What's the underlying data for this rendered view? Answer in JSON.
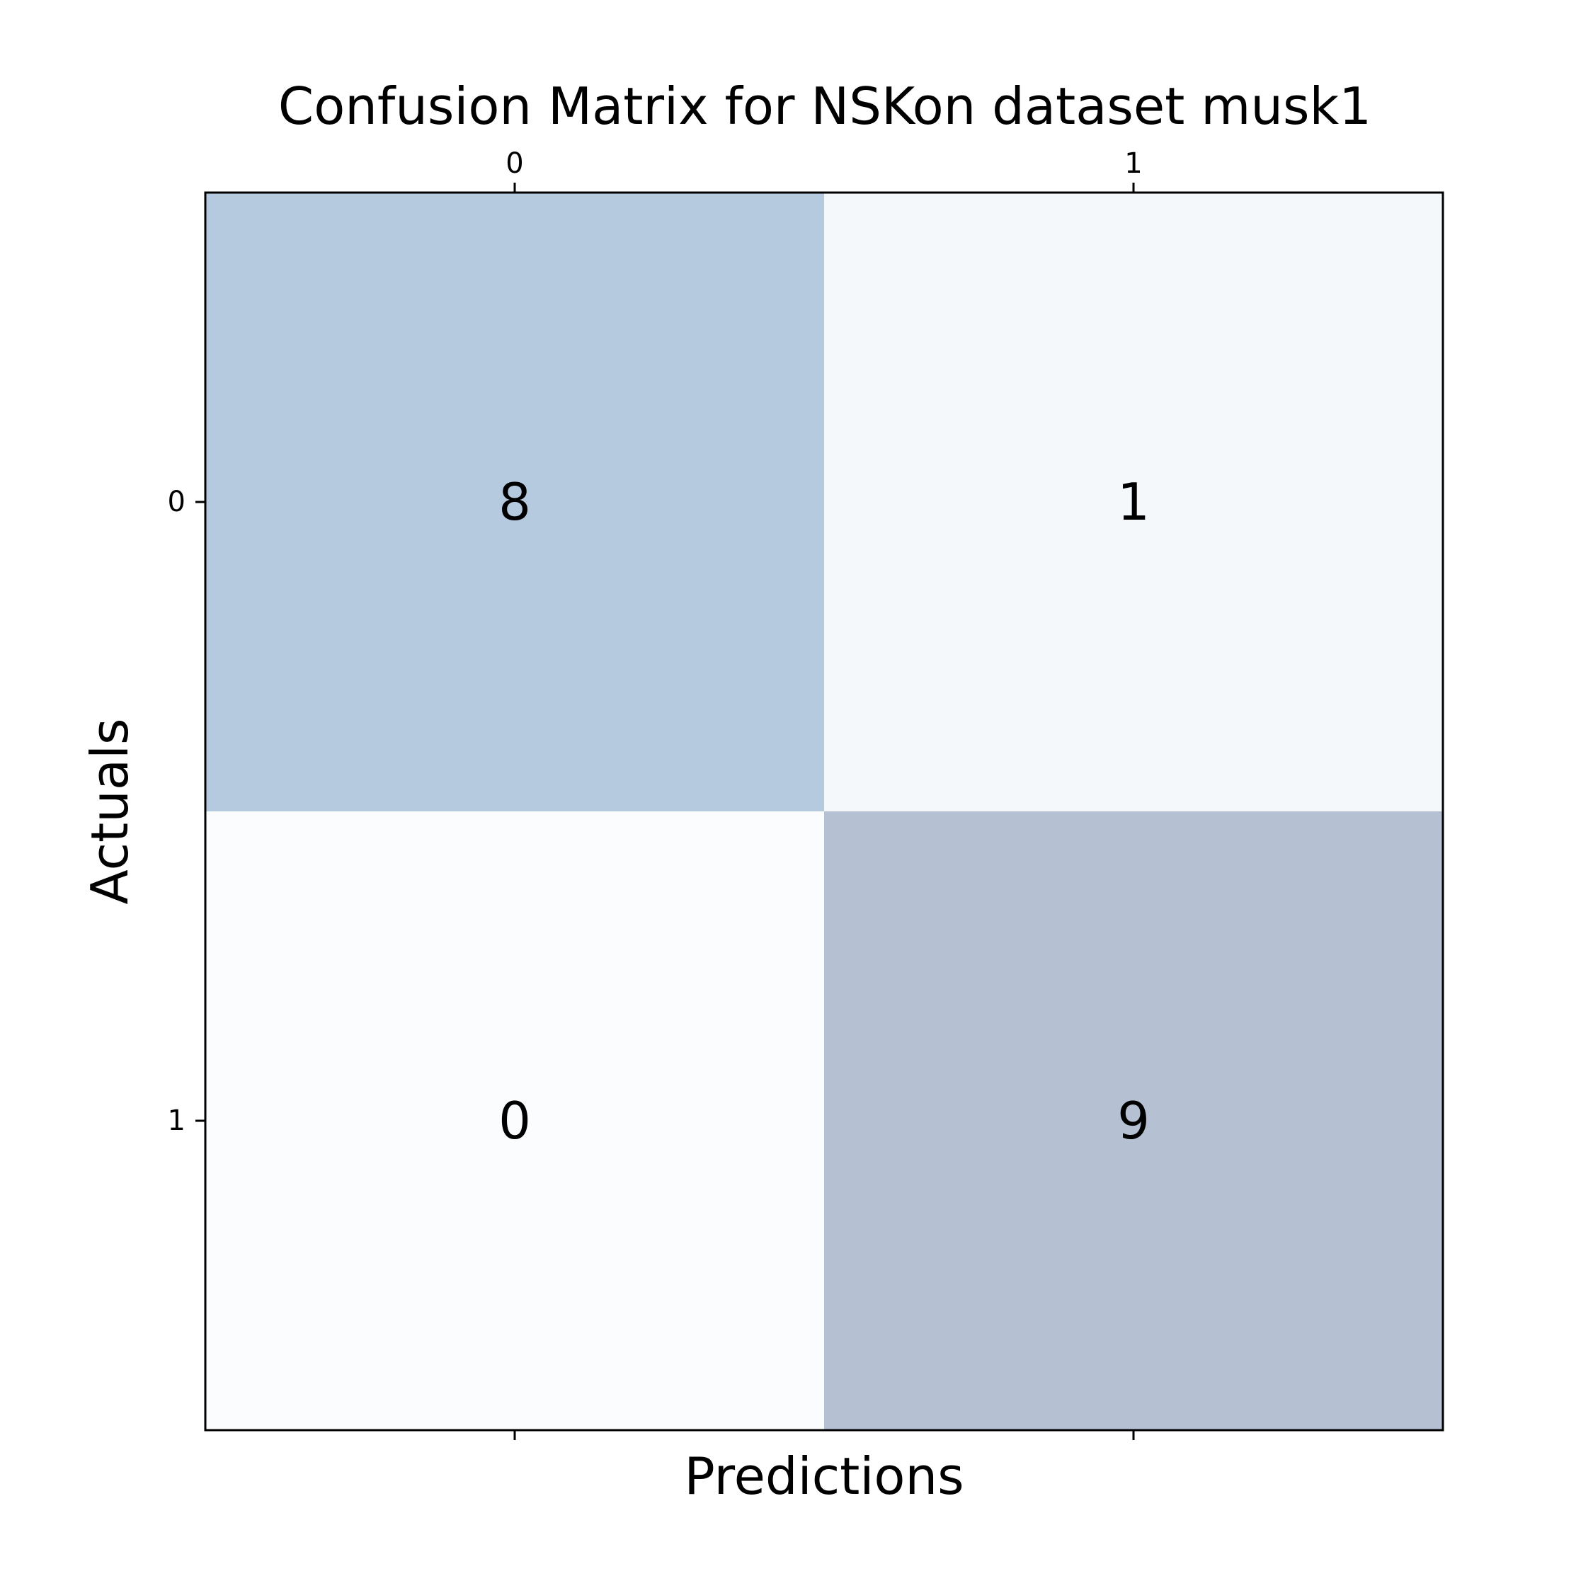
{
  "chart_data": {
    "type": "heatmap",
    "title": "Confusion Matrix for NSKon dataset musk1",
    "xlabel": "Predictions",
    "ylabel": "Actuals",
    "x_categories": [
      "0",
      "1"
    ],
    "y_categories": [
      "0",
      "1"
    ],
    "values": [
      [
        8,
        1
      ],
      [
        0,
        9
      ]
    ],
    "cell_colors": [
      [
        "#b6cadf",
        "#f4f8fb"
      ],
      [
        "#fafcfe",
        "#b5c0d2"
      ]
    ],
    "x_tick_position": "top",
    "grid": false,
    "legend": "none"
  }
}
